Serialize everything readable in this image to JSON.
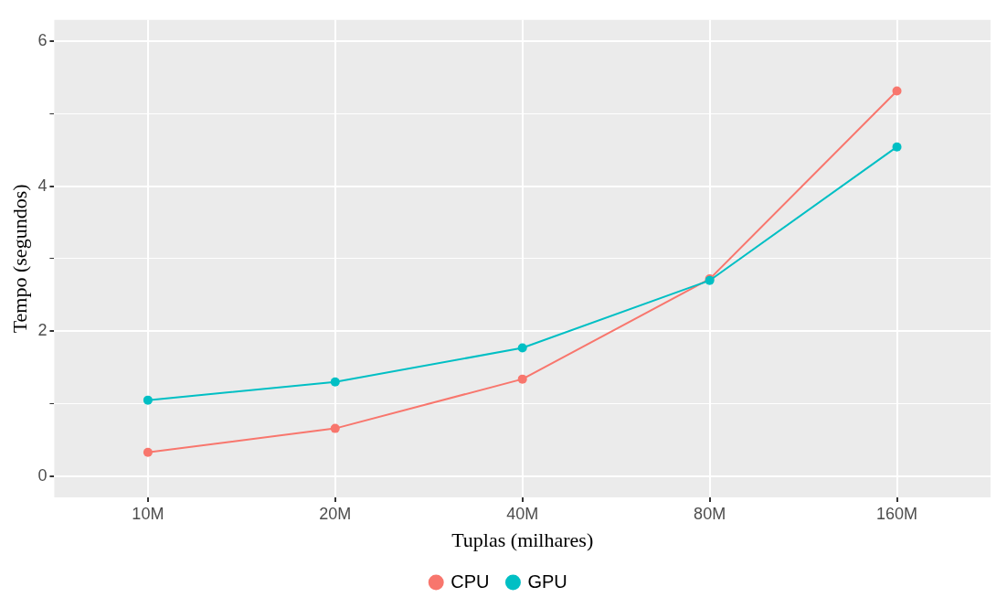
{
  "chart_data": {
    "type": "line",
    "xlabel": "Tuplas (milhares)",
    "ylabel": "Tempo (segundos)",
    "categories": [
      "10M",
      "20M",
      "40M",
      "80M",
      "160M"
    ],
    "series": [
      {
        "name": "CPU",
        "color": "#f8766d",
        "values": [
          0.33,
          0.66,
          1.34,
          2.72,
          5.31
        ]
      },
      {
        "name": "GPU",
        "color": "#00bfc4",
        "values": [
          1.05,
          1.3,
          1.77,
          2.7,
          4.54
        ]
      }
    ],
    "ylim": [
      -0.29,
      6.29
    ],
    "yticks": [
      0,
      {
        "value": 1,
        "label": null
      },
      2,
      {
        "value": 3,
        "label": null
      },
      4,
      {
        "value": 5,
        "label": null
      },
      6
    ],
    "grid": true,
    "legend": "bottom",
    "marker": "circle",
    "line_style": "solid"
  }
}
